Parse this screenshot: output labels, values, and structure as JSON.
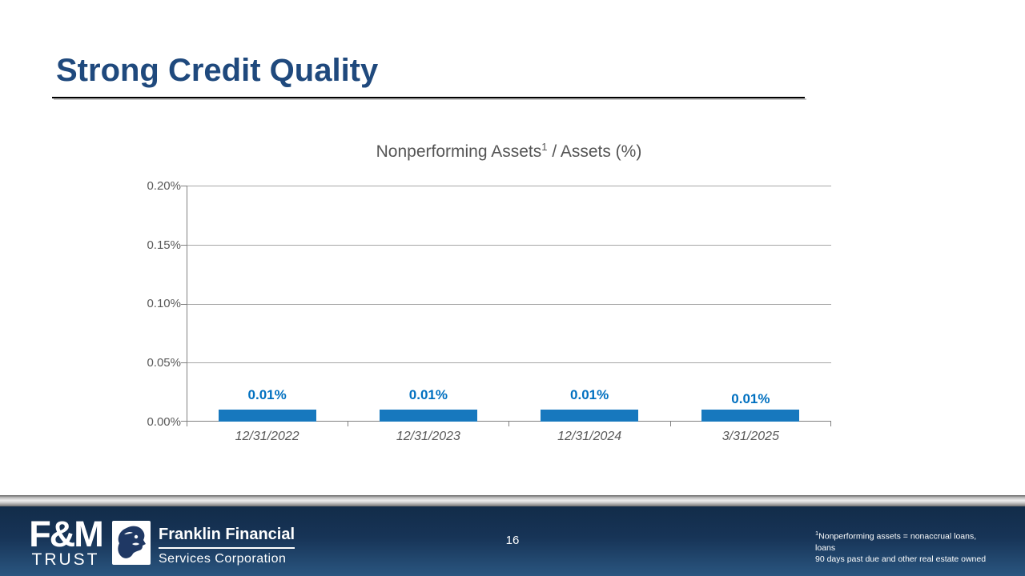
{
  "slide": {
    "title": "Strong Credit Quality",
    "page_number": "16"
  },
  "chart_data": {
    "type": "bar",
    "title": "Nonperforming Assets¹ / Assets (%)",
    "title_parts": {
      "main": "Nonperforming Assets",
      "sup": "1",
      "rest": " / Assets (%)"
    },
    "categories": [
      "12/31/2022",
      "12/31/2023",
      "12/31/2024",
      "3/31/2025"
    ],
    "values": [
      0.01,
      0.01,
      0.01,
      0.01
    ],
    "value_labels": [
      "0.01%",
      "0.01%",
      "0.01%",
      "0.01%"
    ],
    "xlabel": "",
    "ylabel": "",
    "ylim": [
      0,
      0.2
    ],
    "ytick_labels": [
      "0.20%",
      "0.15%",
      "0.10%",
      "0.05%",
      "0.00%"
    ],
    "grid": true,
    "legend": false,
    "bar_color": "#1778BE",
    "value_label_color": "#0070C0"
  },
  "footer": {
    "fm_logo_top": "F&M",
    "fm_logo_bottom": "TRUST",
    "franklin_line1": "Franklin Financial",
    "franklin_line2": "Services Corporation",
    "footnote_sup": "1",
    "footnote_line1": "Nonperforming assets = nonaccrual loans, loans",
    "footnote_line2": "90 days past due and other real estate owned"
  }
}
